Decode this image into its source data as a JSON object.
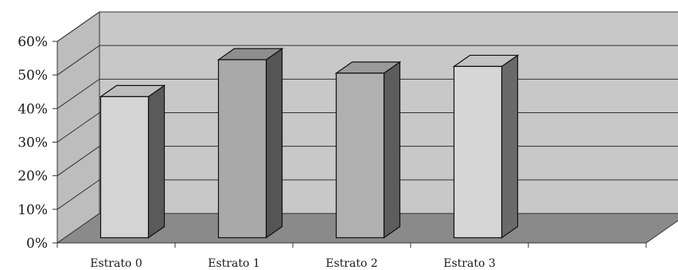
{
  "chart_data": {
    "type": "bar",
    "categories": [
      "Estrato 0",
      "Estrato 1",
      "Estrato 2",
      "Estrato 3"
    ],
    "values": [
      42,
      53,
      49,
      51
    ],
    "ylim": [
      0,
      60
    ],
    "yticks": [
      "0%",
      "10%",
      "20%",
      "30%",
      "40%",
      "50%",
      "60%"
    ],
    "grid": true,
    "legend": "none",
    "colors": {
      "wall": "#c8c8c8",
      "floor": "#8a8a8a",
      "side_wall": "#bdbdbd",
      "bar_fronts": [
        "#d4d4d4",
        "#a9a9a9",
        "#b0b0b0",
        "#d6d6d6"
      ],
      "bar_tops": [
        "#bdbdbd",
        "#8e8e8e",
        "#9a9a9a",
        "#c2c2c2"
      ],
      "bar_sides": [
        "#5a5a5a",
        "#555555",
        "#5d5d5d",
        "#6a6a6a"
      ]
    }
  }
}
